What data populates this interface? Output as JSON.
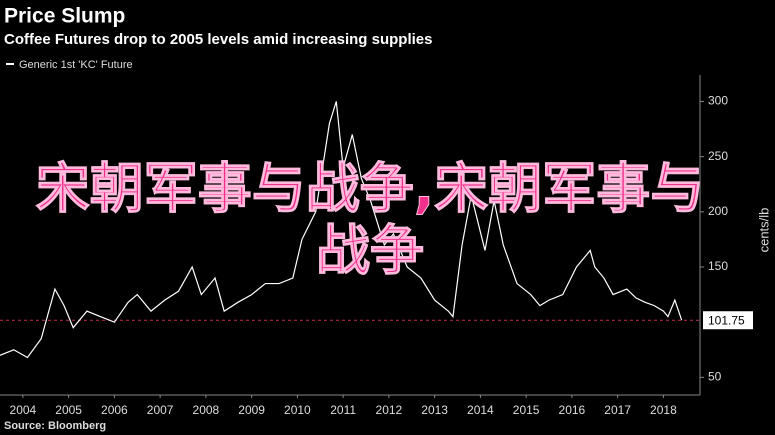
{
  "chart_data": {
    "type": "line",
    "title": "Price Slump",
    "subtitle": "Coffee Futures drop to 2005 levels amid increasing supplies",
    "y_axis_label": "cents/lb",
    "source": "Source: Bloomberg",
    "overlay_text": "宋朝军事与战争,宋朝军事与战争",
    "last_value": {
      "value": 101.75,
      "label": "101.75"
    },
    "xlim": [
      2004,
      2019.3
    ],
    "ylim": [
      34,
      324
    ],
    "yticks": [
      50,
      150,
      200,
      250,
      300
    ],
    "xticks": [
      {
        "value": 2004.5,
        "label": "2004"
      },
      {
        "value": 2005.5,
        "label": "2005"
      },
      {
        "value": 2006.5,
        "label": "2006"
      },
      {
        "value": 2007.5,
        "label": "2007"
      },
      {
        "value": 2008.5,
        "label": "2008"
      },
      {
        "value": 2009.5,
        "label": "2009"
      },
      {
        "value": 2010.5,
        "label": "2010"
      },
      {
        "value": 2011.5,
        "label": "2011"
      },
      {
        "value": 2012.5,
        "label": "2012"
      },
      {
        "value": 2013.5,
        "label": "2013"
      },
      {
        "value": 2014.5,
        "label": "2014"
      },
      {
        "value": 2015.5,
        "label": "2015"
      },
      {
        "value": 2016.5,
        "label": "2016"
      },
      {
        "value": 2017.5,
        "label": "2017"
      },
      {
        "value": 2018.5,
        "label": "2018"
      }
    ],
    "x": [
      2004.0,
      2004.3,
      2004.6,
      2004.9,
      2005.2,
      2005.4,
      2005.6,
      2005.9,
      2006.2,
      2006.5,
      2006.8,
      2007.0,
      2007.3,
      2007.6,
      2007.9,
      2008.2,
      2008.4,
      2008.7,
      2008.9,
      2009.2,
      2009.5,
      2009.8,
      2010.1,
      2010.4,
      2010.6,
      2010.9,
      2011.2,
      2011.35,
      2011.5,
      2011.7,
      2011.9,
      2012.1,
      2012.4,
      2012.6,
      2012.9,
      2013.2,
      2013.5,
      2013.8,
      2013.9,
      2014.1,
      2014.3,
      2014.6,
      2014.8,
      2015.0,
      2015.3,
      2015.6,
      2015.8,
      2016.0,
      2016.3,
      2016.6,
      2016.9,
      2017.0,
      2017.2,
      2017.4,
      2017.7,
      2017.9,
      2018.1,
      2018.3,
      2018.5,
      2018.6,
      2018.75,
      2018.9
    ],
    "series": [
      {
        "name": "Generic 1st 'KC' Future",
        "color": "#ffffff",
        "values": [
          70,
          75,
          68,
          85,
          130,
          115,
          95,
          110,
          105,
          100,
          118,
          125,
          110,
          120,
          128,
          150,
          125,
          140,
          110,
          118,
          125,
          135,
          135,
          140,
          175,
          200,
          280,
          300,
          240,
          270,
          230,
          210,
          170,
          180,
          150,
          140,
          120,
          110,
          105,
          170,
          215,
          165,
          210,
          170,
          135,
          125,
          115,
          120,
          125,
          150,
          165,
          150,
          140,
          125,
          130,
          122,
          118,
          115,
          110,
          105,
          120,
          101.75
        ]
      }
    ]
  }
}
